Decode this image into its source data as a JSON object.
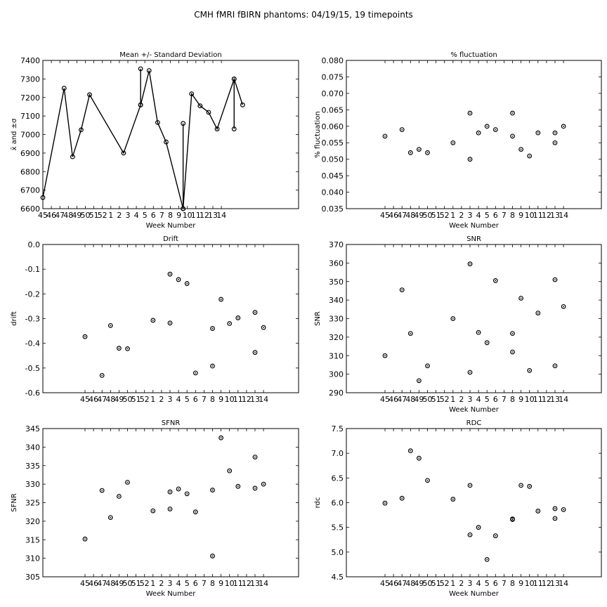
{
  "suptitle": "CMH fMRI fBIRN phantoms: 04/19/15, 19 timepoints",
  "x_tick_labels": [
    "45",
    "46",
    "47",
    "48",
    "49",
    "50",
    "51",
    "52",
    "1",
    "2",
    "3",
    "4",
    "5",
    "6",
    "7",
    "8",
    "9",
    "10",
    "11",
    "12",
    "13",
    "14"
  ],
  "chart_data": [
    {
      "type": "line",
      "title": "Mean +/- Standard Deviation",
      "xlabel": "Week Number",
      "ylabel": "x̄ and ±σ",
      "ylim": [
        6600,
        7400
      ],
      "yticks": [
        "6600",
        "6700",
        "6800",
        "6900",
        "7000",
        "7100",
        "7200",
        "7300",
        "7400"
      ],
      "x_week_index": [
        0,
        2.5,
        3.5,
        4.5,
        5.5,
        9.5,
        11.5,
        12.5,
        13.5,
        14.5,
        16.5,
        17.5,
        18.5,
        19.5,
        20.5,
        22.5,
        23.5
      ],
      "values": [
        6660,
        7250,
        6880,
        7025,
        7215,
        6900,
        7160,
        7345,
        7065,
        6960,
        6600,
        7220,
        7155,
        7120,
        7030,
        7300,
        7160
      ],
      "x_week_index_spikes": [
        11.5,
        11.5,
        16.5,
        16.5,
        22.5,
        22.5
      ],
      "spike_values": [
        7160,
        7355,
        6600,
        7060,
        7030,
        7300
      ]
    },
    {
      "type": "scatter",
      "title": "% fluctuation",
      "xlabel": "Week Number",
      "ylabel": "% fluctuation",
      "ylim": [
        0.035,
        0.08
      ],
      "yticks": [
        "0.035",
        "0.040",
        "0.045",
        "0.050",
        "0.055",
        "0.060",
        "0.065",
        "0.070",
        "0.075",
        "0.080"
      ],
      "x_week_index": [
        0,
        2,
        3,
        4,
        5,
        8,
        10,
        10,
        11,
        12,
        13,
        15,
        15,
        16,
        17,
        18,
        20,
        20,
        21
      ],
      "values": [
        0.057,
        0.059,
        0.052,
        0.053,
        0.052,
        0.055,
        0.064,
        0.05,
        0.058,
        0.06,
        0.059,
        0.064,
        0.057,
        0.053,
        0.051,
        0.058,
        0.058,
        0.055,
        0.06
      ]
    },
    {
      "type": "scatter",
      "title": "Drift",
      "xlabel": "",
      "ylabel": "drift",
      "ylim": [
        -0.6,
        0.0
      ],
      "yticks": [
        "-0.6",
        "-0.5",
        "-0.4",
        "-0.3",
        "-0.2",
        "-0.1",
        "0.0"
      ],
      "x_week_index": [
        0,
        2,
        3,
        4,
        5,
        8,
        10,
        10,
        11,
        12,
        13,
        15,
        15,
        16,
        17,
        18,
        20,
        20,
        21
      ],
      "values": [
        -0.373,
        -0.53,
        -0.328,
        -0.42,
        -0.422,
        -0.307,
        -0.12,
        -0.318,
        -0.142,
        -0.158,
        -0.52,
        -0.34,
        -0.492,
        -0.222,
        -0.32,
        -0.297,
        -0.275,
        -0.437,
        -0.336
      ]
    },
    {
      "type": "scatter",
      "title": "SNR",
      "xlabel": "Week Number",
      "ylabel": "SNR",
      "ylim": [
        290,
        370
      ],
      "yticks": [
        "290",
        "300",
        "310",
        "320",
        "330",
        "340",
        "350",
        "360",
        "370"
      ],
      "x_week_index": [
        0,
        2,
        3,
        4,
        5,
        8,
        10,
        10,
        11,
        12,
        13,
        15,
        15,
        16,
        17,
        18,
        20,
        20,
        21
      ],
      "values": [
        310,
        345.5,
        322,
        296.5,
        304.5,
        330,
        359.5,
        301,
        322.5,
        317,
        350.5,
        312,
        322,
        341,
        302,
        333,
        351,
        304.5,
        336.5
      ]
    },
    {
      "type": "scatter",
      "title": "SFNR",
      "xlabel": "Week Number",
      "ylabel": "SFNR",
      "ylim": [
        305,
        345
      ],
      "yticks": [
        "305",
        "310",
        "315",
        "320",
        "325",
        "330",
        "335",
        "340",
        "345"
      ],
      "x_week_index": [
        0,
        2,
        3,
        4,
        5,
        8,
        10,
        10,
        11,
        12,
        13,
        15,
        15,
        16,
        17,
        18,
        20,
        20,
        21
      ],
      "values": [
        315.2,
        328.3,
        321,
        326.7,
        330.5,
        322.8,
        327.9,
        323.3,
        328.7,
        327.4,
        322.5,
        328.4,
        310.6,
        342.5,
        333.6,
        329.4,
        337.3,
        328.9,
        330
      ]
    },
    {
      "type": "scatter",
      "title": "RDC",
      "xlabel": "Week Number",
      "ylabel": "rdc",
      "ylim": [
        4.5,
        7.5
      ],
      "yticks": [
        "4.5",
        "5.0",
        "5.5",
        "6.0",
        "6.5",
        "7.0",
        "7.5"
      ],
      "x_week_index": [
        0,
        2,
        3,
        4,
        5,
        8,
        10,
        10,
        11,
        12,
        13,
        15,
        15,
        16,
        17,
        18,
        20,
        20,
        21
      ],
      "values": [
        5.99,
        6.09,
        7.05,
        6.9,
        6.45,
        6.07,
        6.35,
        5.35,
        5.5,
        4.85,
        5.33,
        5.67,
        5.66,
        6.35,
        6.33,
        5.83,
        5.88,
        5.68,
        5.86
      ]
    }
  ]
}
